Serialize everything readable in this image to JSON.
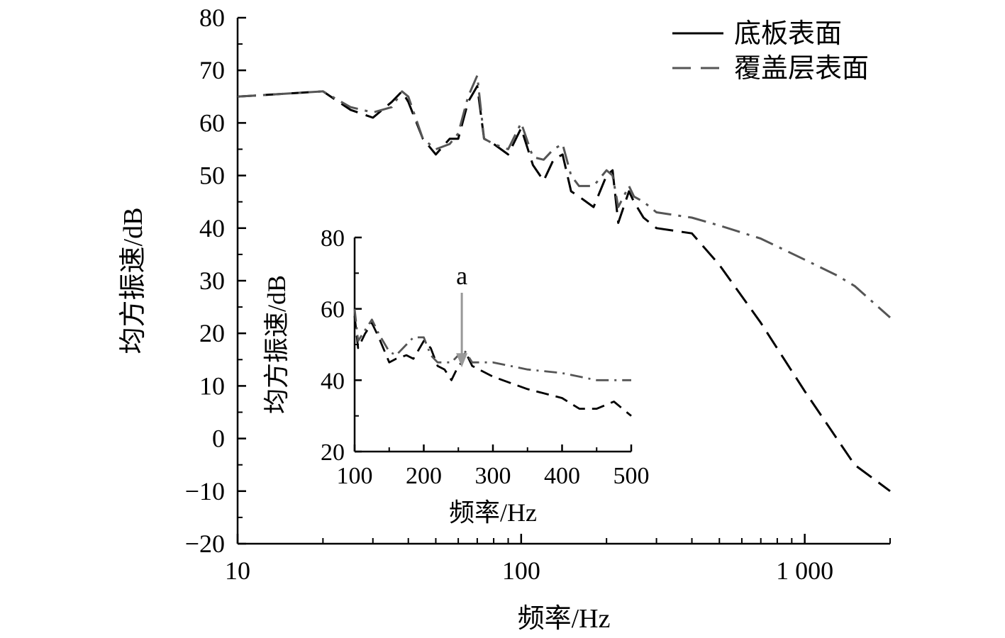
{
  "chart_data": [
    {
      "type": "line",
      "xlabel": "频率/Hz",
      "ylabel": "均方振速/dB",
      "x_scale": "log",
      "xlim": [
        10,
        2000
      ],
      "ylim": [
        -20,
        80
      ],
      "x_ticks": [
        10,
        100,
        1000
      ],
      "x_tick_labels": [
        "10",
        "100",
        "1 000"
      ],
      "y_ticks": [
        -20,
        -10,
        0,
        10,
        20,
        30,
        40,
        50,
        60,
        70,
        80
      ],
      "y_tick_labels": [
        "−20",
        "−10",
        "0",
        "10",
        "20",
        "30",
        "40",
        "50",
        "60",
        "70",
        "80"
      ],
      "legend_position": "top-right",
      "series": [
        {
          "name": "底板表面",
          "style": "solid",
          "color": "#000000",
          "x": [
            10,
            20,
            25,
            30,
            35,
            38,
            40,
            45,
            50,
            56,
            60,
            65,
            70,
            74,
            80,
            90,
            100,
            110,
            120,
            130,
            140,
            150,
            160,
            180,
            200,
            210,
            220,
            240,
            250,
            270,
            300,
            400,
            500,
            700,
            1000,
            1500,
            2000
          ],
          "y": [
            65,
            66,
            62.5,
            61,
            64,
            66,
            64,
            57,
            54,
            57,
            57,
            64,
            67,
            57,
            56,
            54,
            59,
            52,
            49,
            53,
            54,
            47,
            46,
            44,
            50,
            51,
            41,
            47,
            45,
            42,
            40,
            39,
            33,
            22,
            9,
            -5,
            -10
          ]
        },
        {
          "name": "覆盖层表面",
          "style": "dashdot",
          "color": "#555555",
          "x": [
            10,
            20,
            25,
            30,
            35,
            38,
            40,
            45,
            50,
            56,
            60,
            65,
            70,
            74,
            80,
            90,
            100,
            110,
            120,
            130,
            140,
            150,
            160,
            180,
            200,
            210,
            220,
            240,
            250,
            270,
            300,
            400,
            500,
            700,
            1000,
            1300,
            1500,
            2000
          ],
          "y": [
            65,
            66,
            63,
            62,
            63,
            66,
            65,
            57,
            55,
            56,
            58,
            65,
            69,
            57,
            56,
            55,
            60,
            53.5,
            53,
            55,
            56,
            50,
            48,
            48,
            51,
            50,
            44,
            48,
            46,
            45,
            43,
            42,
            40.5,
            38,
            34,
            31,
            29,
            23
          ]
        }
      ]
    },
    {
      "type": "line",
      "xlabel": "频率/Hz",
      "ylabel": "均方振速/dB",
      "xlim": [
        100,
        500
      ],
      "ylim": [
        20,
        80
      ],
      "x_ticks": [
        100,
        200,
        300,
        400,
        500
      ],
      "x_tick_labels": [
        "100",
        "200",
        "300",
        "400",
        "500"
      ],
      "y_ticks": [
        20,
        40,
        60,
        80
      ],
      "y_tick_labels": [
        "20",
        "40",
        "60",
        "80"
      ],
      "annotation": {
        "text": "a",
        "x": 255,
        "y": 44
      },
      "series": [
        {
          "name": "底板表面",
          "style": "dashed",
          "color": "#000000",
          "x": [
            100,
            105,
            115,
            125,
            135,
            150,
            160,
            175,
            185,
            200,
            210,
            220,
            230,
            240,
            250,
            255,
            260,
            270,
            300,
            350,
            400,
            425,
            450,
            475,
            500
          ],
          "y": [
            58,
            49,
            53,
            56,
            52,
            45,
            46,
            47,
            46,
            51,
            49,
            44,
            43,
            40,
            44,
            45,
            48,
            44,
            41,
            37.5,
            35,
            32,
            32,
            34,
            30
          ]
        },
        {
          "name": "覆盖层表面",
          "style": "dashdot",
          "color": "#555555",
          "x": [
            100,
            105,
            115,
            125,
            135,
            150,
            160,
            175,
            185,
            200,
            210,
            220,
            240,
            250,
            255,
            260,
            270,
            300,
            350,
            400,
            450,
            500
          ],
          "y": [
            60,
            51,
            54,
            57,
            53,
            48,
            47,
            50,
            52,
            52,
            47,
            45,
            45,
            47,
            46,
            48,
            45,
            45,
            43,
            42,
            40,
            40
          ]
        }
      ]
    }
  ]
}
